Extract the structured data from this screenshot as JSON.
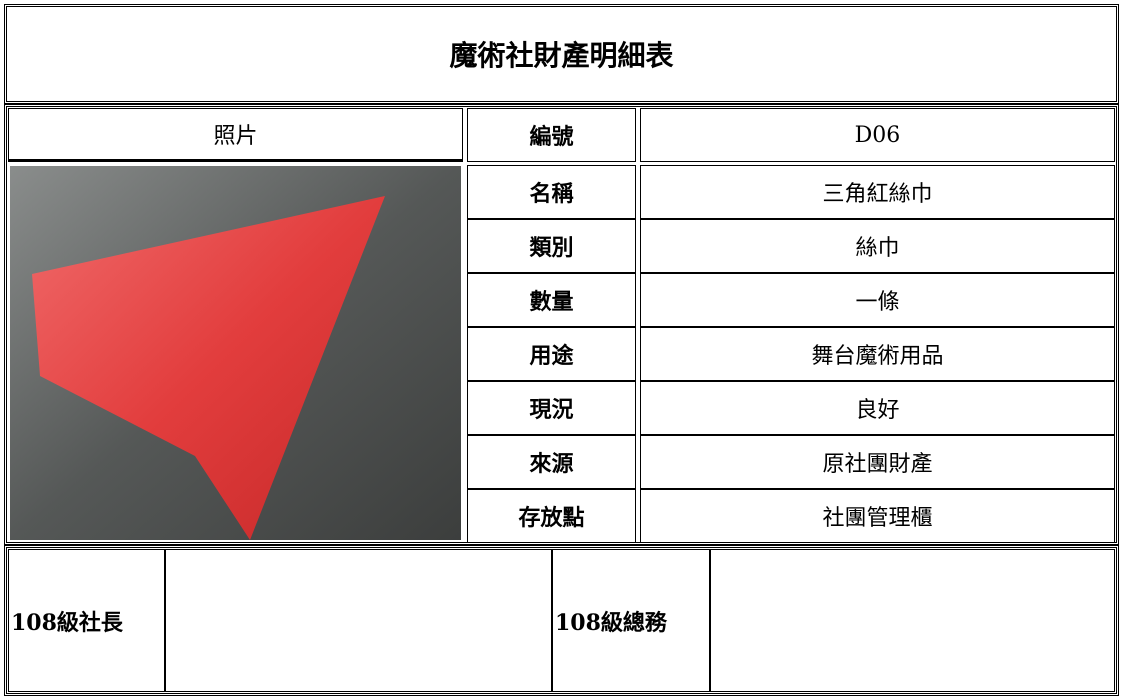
{
  "title": "魔術社財產明細表",
  "photo_label": "照片",
  "fields": [
    {
      "label": "編號",
      "value": "D06"
    },
    {
      "label": "名稱",
      "value": "三角紅絲巾"
    },
    {
      "label": "類別",
      "value": "絲巾"
    },
    {
      "label": "數量",
      "value": "一條"
    },
    {
      "label": "用途",
      "value": "舞台魔術用品"
    },
    {
      "label": "現況",
      "value": "良好"
    },
    {
      "label": "來源",
      "value": "原社團財產"
    },
    {
      "label": "存放點",
      "value": "社團管理櫃"
    }
  ],
  "signatures": [
    {
      "label": "108級社長"
    },
    {
      "label": "108級總務"
    }
  ]
}
